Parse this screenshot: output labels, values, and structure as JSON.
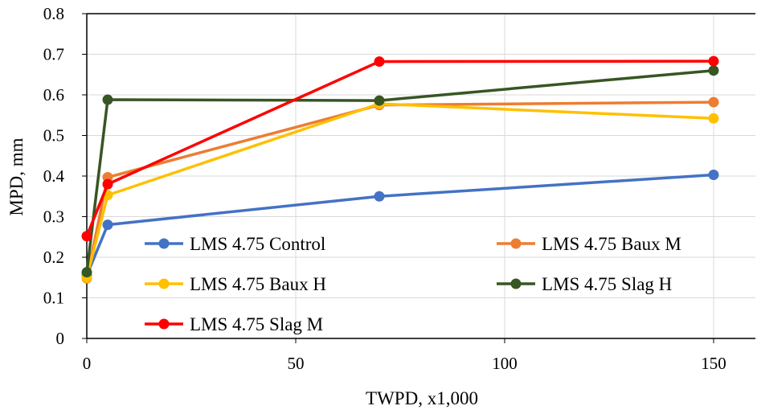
{
  "chart_data": {
    "type": "line",
    "title": "",
    "xlabel": "TWPD, x1,000",
    "ylabel": "MPD, mm",
    "xlim": [
      0,
      160
    ],
    "ylim": [
      0,
      0.8
    ],
    "x_ticks": [
      0,
      50,
      100,
      150
    ],
    "x_tick_labels": [
      "0",
      "50",
      "100",
      "150"
    ],
    "y_ticks": [
      0,
      0.1,
      0.2,
      0.3,
      0.4,
      0.5,
      0.6,
      0.7,
      0.8
    ],
    "y_tick_labels": [
      "0",
      "0.1",
      "0.2",
      "0.3",
      "0.4",
      "0.5",
      "0.6",
      "0.7",
      "0.8"
    ],
    "grid": true,
    "legend_position": "bottom-inside",
    "series": [
      {
        "name": "LMS 4.75 Control",
        "color": "#4472C4",
        "x": [
          0,
          5,
          70,
          150
        ],
        "y": [
          0.155,
          0.28,
          0.35,
          0.403
        ]
      },
      {
        "name": "LMS 4.75 Baux M",
        "color": "#ED7D31",
        "x": [
          0,
          5,
          70,
          150
        ],
        "y": [
          0.148,
          0.397,
          0.575,
          0.582
        ]
      },
      {
        "name": "LMS 4.75 Baux H",
        "color": "#FFC000",
        "x": [
          0,
          5,
          70,
          150
        ],
        "y": [
          0.15,
          0.353,
          0.578,
          0.542
        ]
      },
      {
        "name": "LMS 4.75 Slag H",
        "color": "#375623",
        "x": [
          0,
          5,
          70,
          150
        ],
        "y": [
          0.163,
          0.588,
          0.586,
          0.66
        ]
      },
      {
        "name": "LMS 4.75 Slag M",
        "color": "#FF0000",
        "x": [
          0,
          5,
          70,
          150
        ],
        "y": [
          0.252,
          0.38,
          0.682,
          0.683
        ]
      }
    ]
  }
}
